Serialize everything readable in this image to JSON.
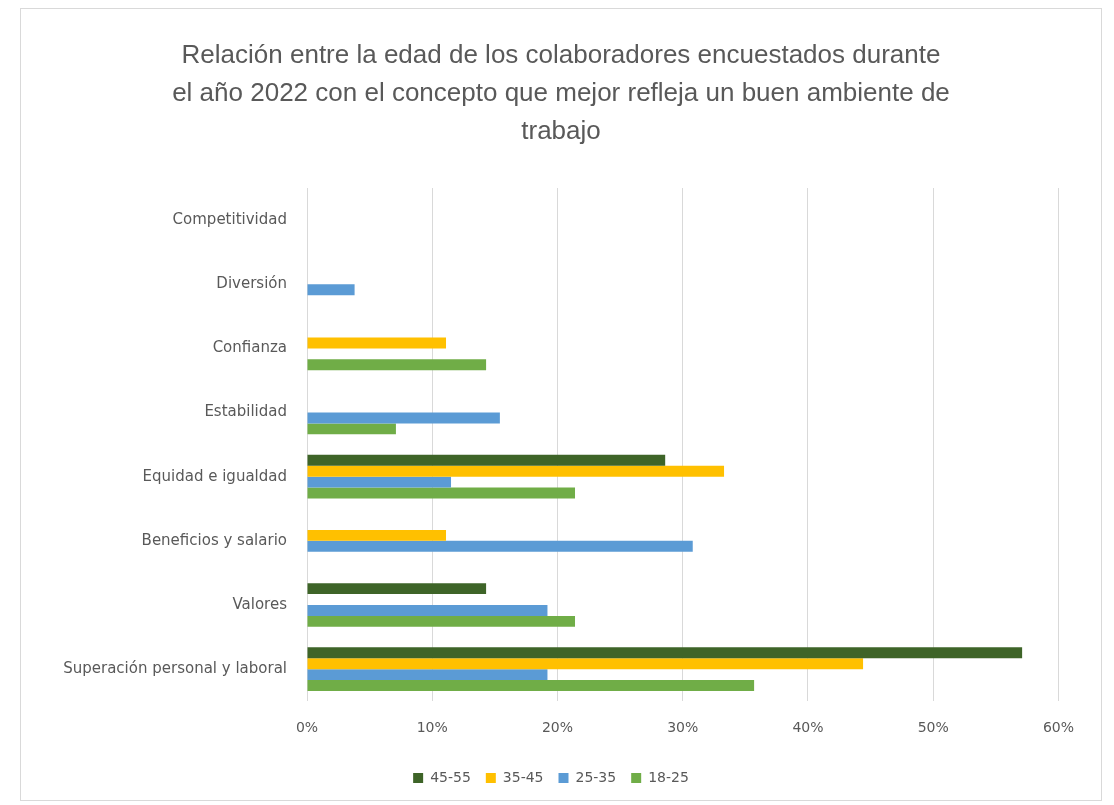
{
  "chart_data": {
    "type": "bar",
    "orientation": "horizontal",
    "title": "Relación entre la edad de los colaboradores encuestados durante el año 2022 con el concepto que mejor refleja un buen ambiente de trabajo",
    "categories": [
      "Competitividad",
      "Diversión",
      "Confianza",
      "Estabilidad",
      "Equidad e igualdad",
      "Beneficios y salario",
      "Valores",
      "Superación personal y laboral"
    ],
    "series": [
      {
        "name": "45-55",
        "color": "#3e6428",
        "values": [
          0,
          0,
          0,
          0,
          28.6,
          0,
          14.3,
          57.1
        ]
      },
      {
        "name": "35-45",
        "color": "#ffc000",
        "values": [
          0,
          0,
          11.1,
          0,
          33.3,
          11.1,
          0,
          44.4
        ]
      },
      {
        "name": "25-35",
        "color": "#5b9bd5",
        "values": [
          0,
          3.8,
          0,
          15.4,
          11.5,
          30.8,
          19.2,
          19.2
        ]
      },
      {
        "name": "18-25",
        "color": "#70ad47",
        "values": [
          0,
          0,
          14.3,
          7.1,
          21.4,
          0,
          21.4,
          35.7
        ]
      }
    ],
    "xlim": [
      0,
      60
    ],
    "xticks": [
      {
        "value": 0,
        "label": "0%"
      },
      {
        "value": 10,
        "label": "10%"
      },
      {
        "value": 20,
        "label": "20%"
      },
      {
        "value": 30,
        "label": "30%"
      },
      {
        "value": 40,
        "label": "40%"
      },
      {
        "value": 50,
        "label": "50%"
      },
      {
        "value": 60,
        "label": "60%"
      }
    ],
    "grid": "x",
    "legend": "bottom"
  }
}
